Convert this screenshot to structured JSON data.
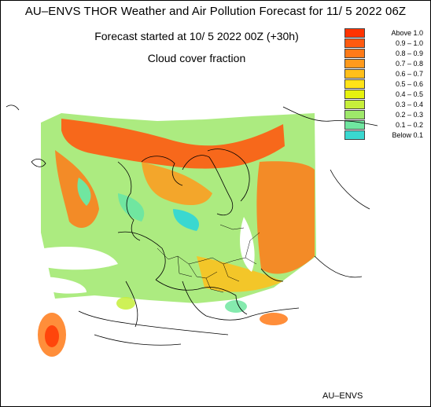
{
  "title": "AU–ENVS THOR Weather and Air Pollution Forecast for 11/ 5 2022  06Z",
  "subtitle": "Forecast started at 10/ 5 2022  00Z (+30h)",
  "variable": "Cloud cover fraction",
  "credit": "AU–ENVS",
  "legend": [
    {
      "label": "Above   1.0",
      "color": "#ff3300"
    },
    {
      "label": "0.9 – 1.0",
      "color": "#ff5a10"
    },
    {
      "label": "0.8 – 0.9",
      "color": "#ff7a18"
    },
    {
      "label": "0.7 – 0.8",
      "color": "#ff9a1c"
    },
    {
      "label": "0.6 – 0.7",
      "color": "#ffbf1a"
    },
    {
      "label": "0.5 – 0.6",
      "color": "#ffe318"
    },
    {
      "label": "0.4 – 0.5",
      "color": "#e6f20e"
    },
    {
      "label": "0.3 – 0.4",
      "color": "#c6ee3a"
    },
    {
      "label": "0.2 – 0.3",
      "color": "#9ee86a"
    },
    {
      "label": "0.1 – 0.2",
      "color": "#70e6a0"
    },
    {
      "label": "Below   0.1",
      "color": "#3ad8d0"
    }
  ],
  "map": {
    "region": "Europe",
    "land_color": "#ffffff",
    "border_color": "#000000"
  }
}
